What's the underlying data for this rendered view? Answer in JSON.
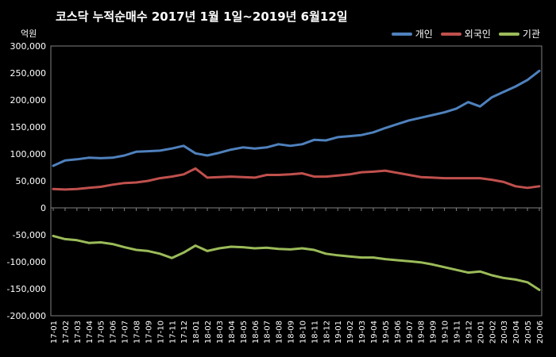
{
  "chart_data": {
    "type": "line",
    "title": "코스닥 누적순매수 2017년 1월 1일~2019년 6월12일",
    "unit": "억원",
    "ylim": [
      -200000,
      300000
    ],
    "yticks": [
      300000,
      250000,
      200000,
      150000,
      100000,
      50000,
      0,
      -50000,
      -100000,
      -150000,
      -200000
    ],
    "ytick_labels": [
      "300,000",
      "250,000",
      "200,000",
      "150,000",
      "100,000",
      "50,000",
      "0",
      "-50,000",
      "-100,000",
      "-150,000",
      "-200,000"
    ],
    "x_labels": [
      "17-01",
      "17-02",
      "17-03",
      "17-04",
      "17-05",
      "17-06",
      "17-07",
      "17-08",
      "17-09",
      "17-10",
      "17-11",
      "17-12",
      "18-01",
      "18-02",
      "18-03",
      "18-04",
      "18-05",
      "18-06",
      "18-07",
      "18-08",
      "18-09",
      "18-10",
      "18-11",
      "18-12",
      "19-01",
      "19-02",
      "19-03",
      "19-04",
      "19-05",
      "19-06",
      "19-07",
      "19-08",
      "19-09",
      "19-10",
      "19-11",
      "19-12",
      "20-01",
      "20-02",
      "20-03",
      "20-04",
      "20-05",
      "20-06"
    ],
    "grid": false,
    "legend_position": "top-right",
    "series": [
      {
        "name": "개인",
        "color": "#4f81bd",
        "values": [
          78000,
          88000,
          90000,
          93000,
          92000,
          93000,
          97000,
          104000,
          105000,
          106000,
          110000,
          115000,
          101000,
          97000,
          102000,
          108000,
          112000,
          110000,
          112000,
          118000,
          115000,
          118000,
          126000,
          125000,
          131000,
          133000,
          135000,
          140000,
          148000,
          155000,
          162000,
          167000,
          172000,
          177000,
          184000,
          196000,
          188000,
          205000,
          215000,
          225000,
          237000,
          254000
        ]
      },
      {
        "name": "외국인",
        "color": "#c0504d",
        "values": [
          35000,
          34000,
          35000,
          37000,
          39000,
          43000,
          46000,
          47000,
          50000,
          55000,
          58000,
          62000,
          73000,
          56000,
          57000,
          58000,
          57000,
          56000,
          61000,
          61000,
          62000,
          64000,
          58000,
          58000,
          60000,
          62000,
          66000,
          67000,
          69000,
          65000,
          61000,
          57000,
          56000,
          55000,
          55000,
          55000,
          55000,
          52000,
          48000,
          40000,
          37000,
          40000
        ]
      },
      {
        "name": "기관",
        "color": "#9bbb59",
        "values": [
          -52000,
          -58000,
          -60000,
          -65000,
          -64000,
          -67000,
          -73000,
          -78000,
          -80000,
          -85000,
          -93000,
          -83000,
          -70000,
          -80000,
          -75000,
          -72000,
          -73000,
          -75000,
          -74000,
          -76000,
          -77000,
          -75000,
          -78000,
          -85000,
          -88000,
          -90000,
          -92000,
          -92000,
          -95000,
          -97000,
          -99000,
          -101000,
          -105000,
          -110000,
          -115000,
          -120000,
          -118000,
          -125000,
          -130000,
          -133000,
          -138000,
          -152000
        ]
      }
    ]
  }
}
